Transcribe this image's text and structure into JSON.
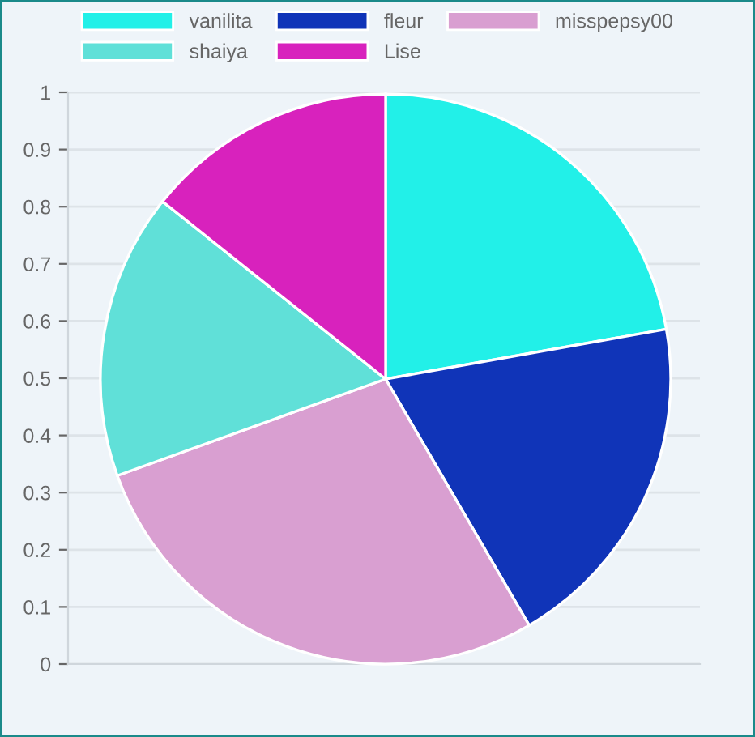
{
  "chart_data": {
    "type": "pie",
    "categories": [
      "vanilita",
      "fleur",
      "misspepsy00",
      "shaiya",
      "Lise"
    ],
    "values": [
      22.2,
      19.4,
      27.9,
      16.2,
      14.3
    ],
    "colors": [
      "#22f0e8",
      "#1034b8",
      "#d99fd1",
      "#60e0d8",
      "#d822bd"
    ],
    "annotations": [
      "0",
      "0.1",
      "0.2",
      "0.3",
      "0.4",
      "0.5",
      "0.6",
      "0.7",
      "0.8",
      "0.9",
      "1"
    ],
    "grid": "y",
    "legend": "top"
  }
}
